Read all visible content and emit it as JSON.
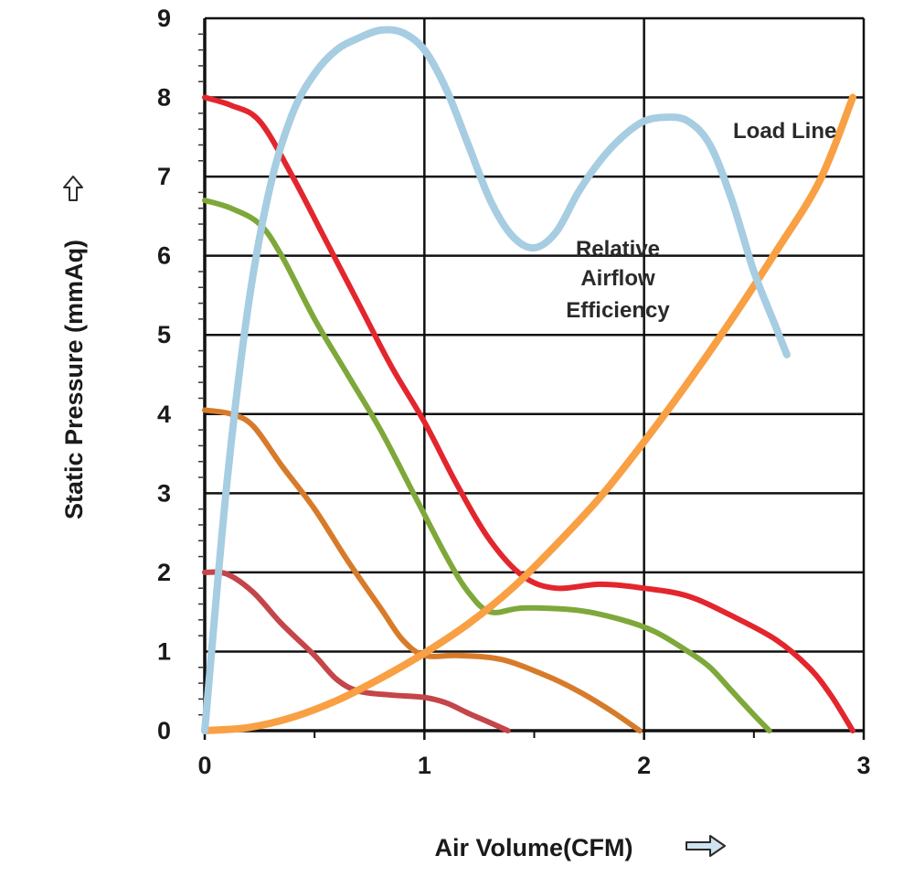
{
  "chart_data": {
    "type": "line",
    "xlabel": "Air Volume(CFM)",
    "ylabel": "Static Pressure (mmAq)",
    "xlim": [
      0,
      3
    ],
    "ylim": [
      0,
      9
    ],
    "x_ticks": [
      "0",
      "1",
      "2",
      "3"
    ],
    "y_ticks": [
      "0",
      "1",
      "2",
      "3",
      "4",
      "5",
      "6",
      "7",
      "8",
      "9"
    ],
    "grid": true,
    "annotations": {
      "load_line": "Load Line",
      "efficiency_line1": "Relative",
      "efficiency_line2": "Airflow",
      "efficiency_line3": "Efficiency"
    },
    "series": [
      {
        "color": "#e3262e",
        "points": [
          [
            0,
            8.0
          ],
          [
            0.12,
            7.9
          ],
          [
            0.25,
            7.7
          ],
          [
            0.4,
            7.0
          ],
          [
            0.55,
            6.2
          ],
          [
            0.7,
            5.4
          ],
          [
            0.85,
            4.6
          ],
          [
            1.0,
            3.9
          ],
          [
            1.15,
            3.1
          ],
          [
            1.3,
            2.4
          ],
          [
            1.45,
            1.95
          ],
          [
            1.6,
            1.8
          ],
          [
            1.8,
            1.85
          ],
          [
            2.0,
            1.8
          ],
          [
            2.2,
            1.7
          ],
          [
            2.4,
            1.45
          ],
          [
            2.6,
            1.15
          ],
          [
            2.75,
            0.8
          ],
          [
            2.85,
            0.45
          ],
          [
            2.95,
            0.0
          ]
        ]
      },
      {
        "color": "#7ea83a",
        "points": [
          [
            0,
            6.7
          ],
          [
            0.12,
            6.6
          ],
          [
            0.25,
            6.4
          ],
          [
            0.35,
            6.0
          ],
          [
            0.5,
            5.2
          ],
          [
            0.65,
            4.5
          ],
          [
            0.8,
            3.8
          ],
          [
            0.95,
            3.0
          ],
          [
            1.1,
            2.2
          ],
          [
            1.2,
            1.75
          ],
          [
            1.3,
            1.5
          ],
          [
            1.45,
            1.55
          ],
          [
            1.7,
            1.52
          ],
          [
            1.9,
            1.4
          ],
          [
            2.05,
            1.25
          ],
          [
            2.2,
            1.0
          ],
          [
            2.3,
            0.8
          ],
          [
            2.4,
            0.5
          ],
          [
            2.5,
            0.2
          ],
          [
            2.57,
            0.0
          ]
        ]
      },
      {
        "color": "#d77b2a",
        "points": [
          [
            0,
            4.05
          ],
          [
            0.12,
            4.0
          ],
          [
            0.22,
            3.85
          ],
          [
            0.35,
            3.35
          ],
          [
            0.5,
            2.8
          ],
          [
            0.65,
            2.15
          ],
          [
            0.8,
            1.55
          ],
          [
            0.9,
            1.15
          ],
          [
            1.0,
            0.95
          ],
          [
            1.15,
            0.95
          ],
          [
            1.35,
            0.9
          ],
          [
            1.55,
            0.7
          ],
          [
            1.7,
            0.5
          ],
          [
            1.85,
            0.25
          ],
          [
            1.98,
            0.0
          ]
        ]
      },
      {
        "color": "#c4454a",
        "points": [
          [
            0,
            2.0
          ],
          [
            0.1,
            1.98
          ],
          [
            0.22,
            1.75
          ],
          [
            0.35,
            1.35
          ],
          [
            0.5,
            0.95
          ],
          [
            0.6,
            0.65
          ],
          [
            0.7,
            0.5
          ],
          [
            0.85,
            0.45
          ],
          [
            1.0,
            0.42
          ],
          [
            1.1,
            0.35
          ],
          [
            1.2,
            0.22
          ],
          [
            1.3,
            0.1
          ],
          [
            1.38,
            0.0
          ]
        ]
      },
      {
        "color": "#f8a043",
        "points": [
          [
            0,
            0.0
          ],
          [
            0.2,
            0.04
          ],
          [
            0.4,
            0.17
          ],
          [
            0.6,
            0.38
          ],
          [
            0.8,
            0.66
          ],
          [
            1.0,
            0.98
          ],
          [
            1.2,
            1.35
          ],
          [
            1.4,
            1.8
          ],
          [
            1.6,
            2.35
          ],
          [
            1.8,
            2.95
          ],
          [
            2.0,
            3.65
          ],
          [
            2.2,
            4.4
          ],
          [
            2.4,
            5.2
          ],
          [
            2.6,
            6.05
          ],
          [
            2.8,
            6.95
          ],
          [
            2.95,
            8.0
          ]
        ]
      },
      {
        "color": "#a6cde2",
        "points": [
          [
            0,
            0.0
          ],
          [
            0.1,
            3.1
          ],
          [
            0.2,
            5.4
          ],
          [
            0.3,
            6.9
          ],
          [
            0.4,
            7.8
          ],
          [
            0.5,
            8.3
          ],
          [
            0.6,
            8.6
          ],
          [
            0.7,
            8.75
          ],
          [
            0.8,
            8.85
          ],
          [
            0.9,
            8.82
          ],
          [
            1.0,
            8.6
          ],
          [
            1.1,
            8.1
          ],
          [
            1.2,
            7.4
          ],
          [
            1.3,
            6.7
          ],
          [
            1.4,
            6.25
          ],
          [
            1.5,
            6.1
          ],
          [
            1.6,
            6.3
          ],
          [
            1.7,
            6.8
          ],
          [
            1.8,
            7.2
          ],
          [
            1.9,
            7.5
          ],
          [
            2.0,
            7.7
          ],
          [
            2.1,
            7.75
          ],
          [
            2.2,
            7.7
          ],
          [
            2.3,
            7.4
          ],
          [
            2.4,
            6.7
          ],
          [
            2.5,
            5.8
          ],
          [
            2.6,
            5.1
          ],
          [
            2.65,
            4.75
          ]
        ]
      }
    ]
  }
}
